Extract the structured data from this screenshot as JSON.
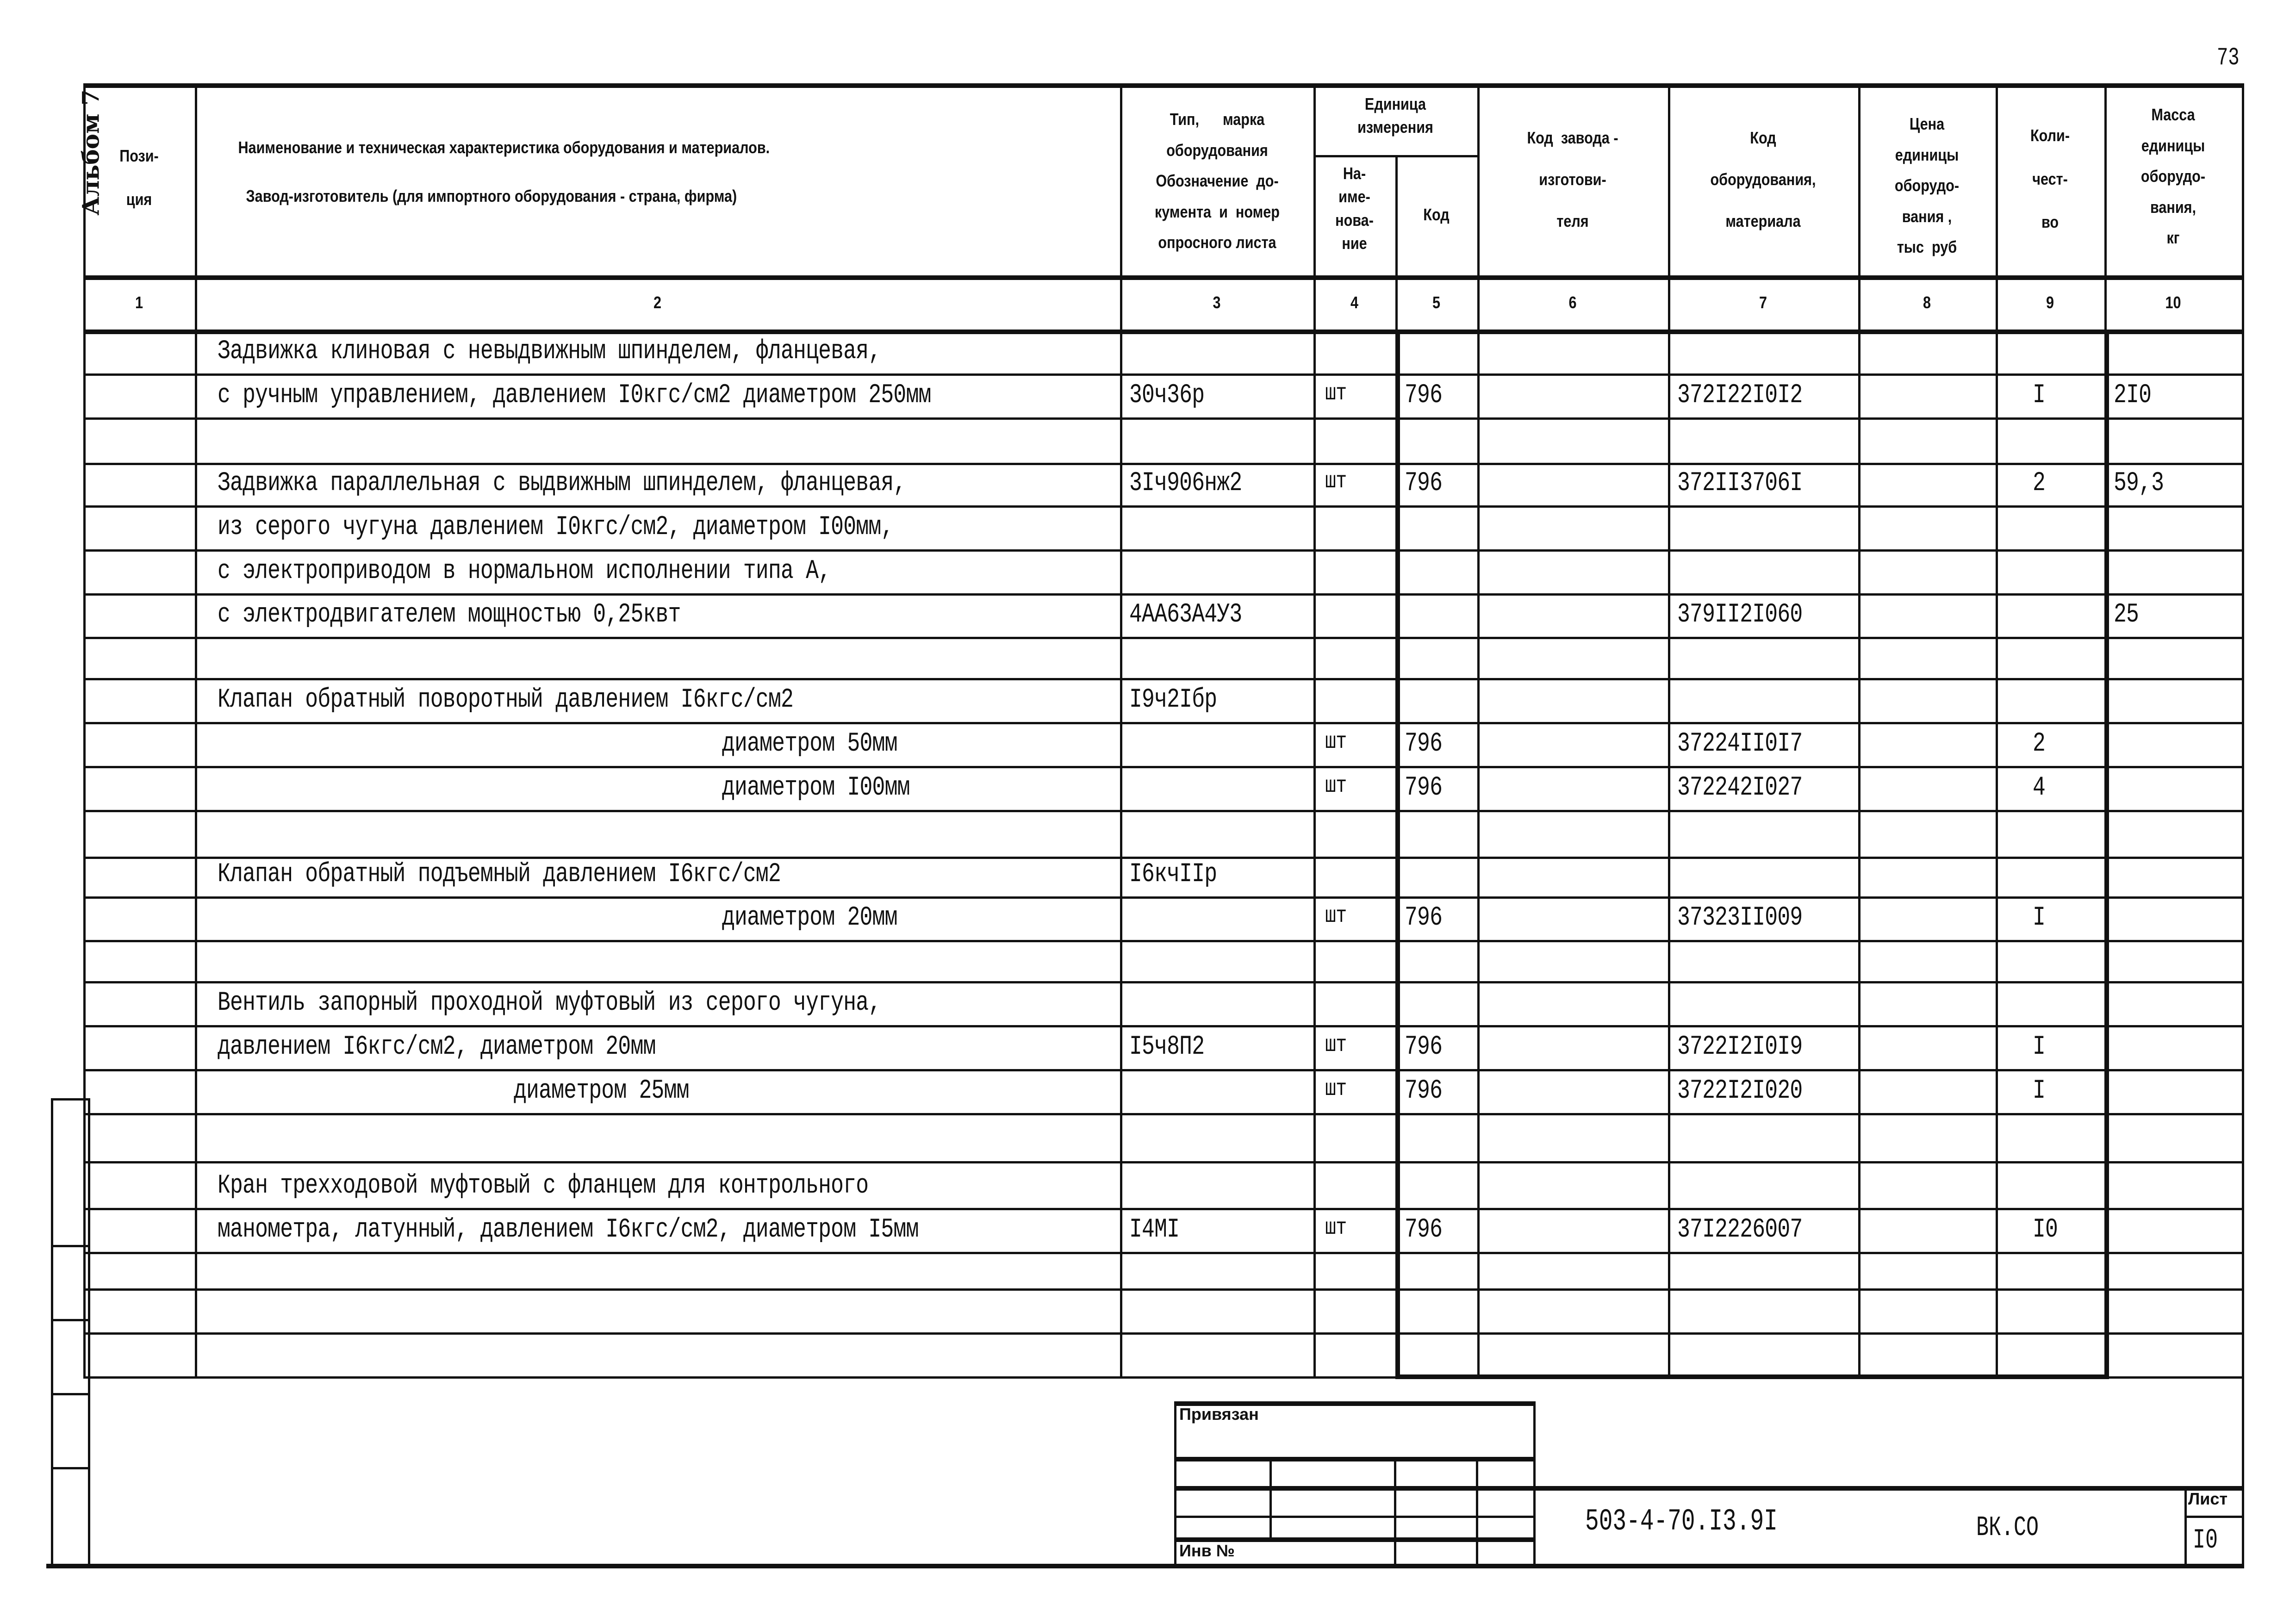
{
  "sheet": {
    "album_label": "Альбом 7",
    "page_number": "73"
  },
  "header": {
    "col1": "Пози-\nция",
    "col2_line1": "Наименование и техническая характеристика  оборудования и материалов.",
    "col2_line2": "Завод-изготовитель  (для импортного оборудования -  страна, фирма)",
    "col3": "Тип,      марка\nоборудования\nОбозначение  до-\nкумента  и  номер\nопросного листа",
    "unit_group": "Единица\nизмерения",
    "col4": "На-\nиме-\nнова-\nние",
    "col5": "Код",
    "col6": "Код  завода -\n\nизготови-\n\nтеля",
    "col7": "Код\n\nоборудования,\n\nматериала",
    "col8": "Цена\nединицы\nоборудо-\nвания ,\nтыс  руб",
    "col9": "Коли-\n\nчест-\n\nво",
    "col10": "Масса\nединицы\nоборудо-\nвания,\nкг"
  },
  "column_numbers": [
    "1",
    "2",
    "3",
    "4",
    "5",
    "6",
    "7",
    "8",
    "9",
    "10"
  ],
  "rows": [
    {
      "name": "Задвижка клиновая с невыдвижным шпинделем, фланцевая,"
    },
    {
      "name": "с ручным управлением, давлением I0кгс/см2 диаметром 250мм",
      "type": "30ч36р",
      "unit": "шт",
      "unit_code": "796",
      "code": "372I22I0I2",
      "qty": "I",
      "mass": "2I0"
    },
    {},
    {
      "name": "Задвижка параллельная с выдвижным шпинделем, фланцевая,",
      "type": "3Iч906нж2",
      "unit": "шт",
      "unit_code": "796",
      "code": "372II3706I",
      "qty": "2",
      "mass": "59,3"
    },
    {
      "name": "из серого чугуна давлением I0кгс/см2, диаметром I00мм,"
    },
    {
      "name": "с электроприводом в нормальном исполнении типа А,"
    },
    {
      "name": "с электродвигателем мощностью 0,25квт",
      "type": "4АА63А4У3",
      "code": "379II2I060",
      "mass": "25"
    },
    {},
    {
      "name": "Клапан обратный поворотный давлением I6кгс/см2",
      "type": "I9ч2Iбр"
    },
    {
      "name": "диаметром 50мм",
      "indent": true,
      "unit": "шт",
      "unit_code": "796",
      "code": "37224II0I7",
      "qty": "2"
    },
    {
      "name": "диаметром I00мм",
      "indent": true,
      "unit": "шт",
      "unit_code": "796",
      "code": "372242I027",
      "qty": "4"
    },
    {},
    {
      "name": "Клапан обратный подъемный давлением I6кгс/см2",
      "type": "I6кчIIр"
    },
    {
      "name": "диаметром 20мм",
      "indent": true,
      "unit": "шт",
      "unit_code": "796",
      "code": "37323II009",
      "qty": "I"
    },
    {},
    {
      "name": "Вентиль запорный проходной муфтовый из серого чугуна,"
    },
    {
      "name": "давлением I6кгс/см2, диаметром 20мм",
      "type": "I5ч8П2",
      "unit": "шт",
      "unit_code": "796",
      "code": "3722I2I0I9",
      "qty": "I"
    },
    {
      "name": "диаметром 25мм",
      "indent2": true,
      "unit": "шт",
      "unit_code": "796",
      "code": "3722I2I020",
      "qty": "I"
    },
    {},
    {
      "name": "Кран трехходовой муфтовый с фланцем для контрольного"
    },
    {
      "name": "манометра, латунный, давлением I6кгс/см2, диаметром I5мм",
      "type": "I4MI",
      "unit": "шт",
      "unit_code": "796",
      "code": "37I2226007",
      "qty": "I0"
    },
    {},
    {},
    {}
  ],
  "title_block": {
    "linked_label": "Привязан",
    "inv_label": "Инв  №",
    "doc_number": "503-4-70.I3.9I",
    "doc_code": "ВК.СО",
    "sheet_label": "Лист",
    "sheet_number": "I0"
  }
}
